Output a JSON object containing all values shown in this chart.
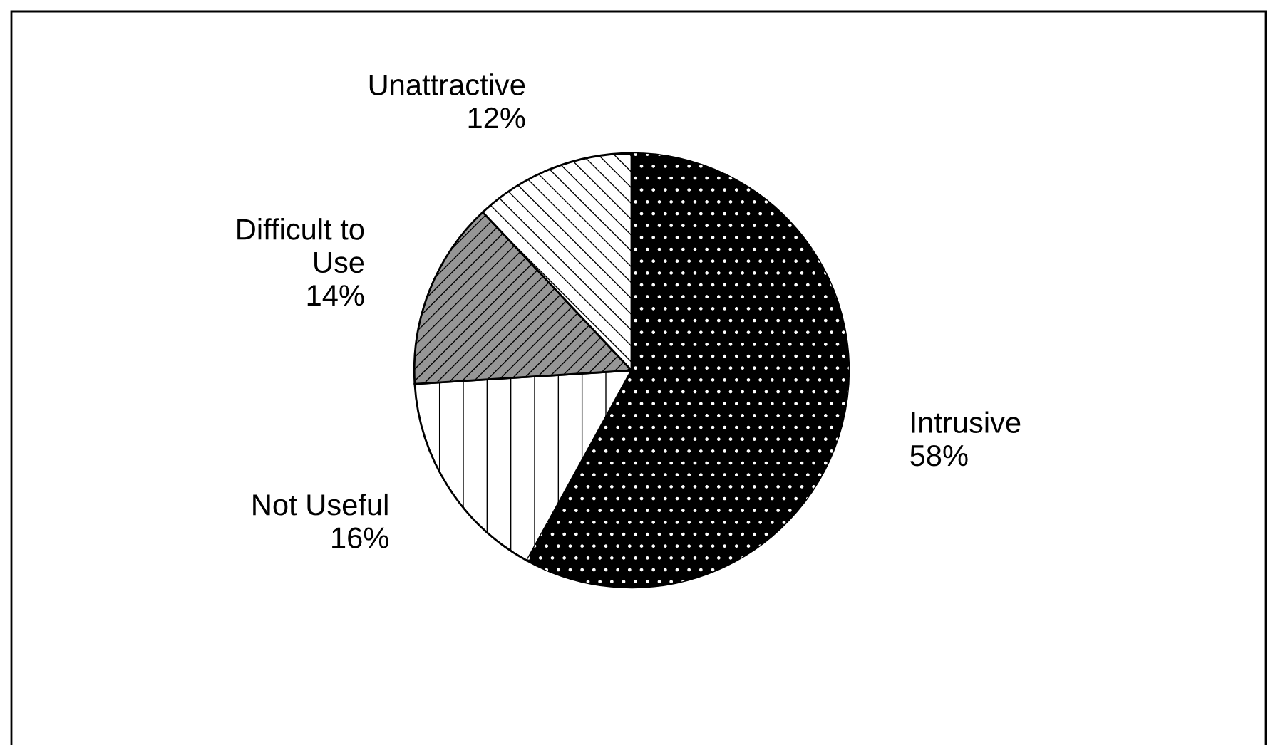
{
  "chart_data": {
    "type": "pie",
    "categories": [
      "Intrusive",
      "Not Useful",
      "Difficult to\nUse",
      "Unattractive"
    ],
    "values": [
      58,
      16,
      14,
      12
    ],
    "value_labels": [
      "58%",
      "16%",
      "14%",
      "12%"
    ],
    "colors": [
      "#000000",
      "#ffffff",
      "#969696",
      "#ffffff"
    ],
    "legend": false
  }
}
